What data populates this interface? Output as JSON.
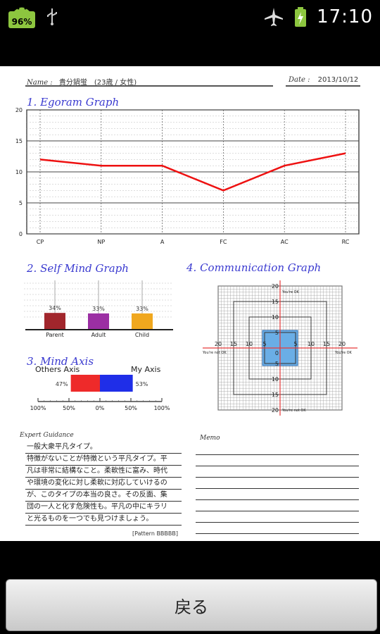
{
  "status_bar": {
    "battery_badge": "96%",
    "time": "17:10"
  },
  "header": {
    "name_label": "Name :",
    "name_value": "貴分鍋蛍　(23歳 / 女性)",
    "date_label": "Date :",
    "date_value": "2013/10/12"
  },
  "sections": {
    "egogram": "1. Egoram Graph",
    "self_mind": "2. Self Mind Graph",
    "communication": "4. Communication Graph",
    "mind_axis": "3. Mind Axis"
  },
  "chart_data": [
    {
      "type": "line",
      "categories": [
        "CP",
        "NP",
        "A",
        "FC",
        "AC",
        "RC"
      ],
      "values": [
        12,
        11,
        11,
        7,
        11,
        13
      ],
      "ylim": [
        0,
        20
      ],
      "yticks": [
        "0",
        "5",
        "10",
        "15",
        "20"
      ],
      "line_color": "#ee1111",
      "grid": true
    },
    {
      "type": "bar",
      "categories": [
        "Parent",
        "Adult",
        "Child"
      ],
      "values": [
        34,
        33,
        33
      ],
      "value_labels": [
        "34%",
        "33%",
        "33%"
      ],
      "colors": [
        "#a1262c",
        "#9b2fa3",
        "#f0a71e"
      ]
    },
    {
      "type": "bar",
      "left_label": "Others Axis",
      "right_label": "My Axis",
      "left_value": 47,
      "right_value": 53,
      "left_value_label": "47%",
      "right_value_label": "53%",
      "left_color": "#ee2a2a",
      "right_color": "#1f2ee8",
      "tick_labels": [
        "100%",
        "50%",
        "0%",
        "50%",
        "100%"
      ]
    },
    {
      "type": "scatter",
      "axis_labels_top": "20",
      "ticks": [
        "20",
        "15",
        "10",
        "5"
      ],
      "center_label": "0",
      "corner_labels": {
        "top": "You're OK",
        "left": "You're not OK",
        "right": "You're OK",
        "bottom": "You're not OK"
      },
      "box_x": [
        -5,
        5
      ],
      "box_y": [
        -5,
        5
      ],
      "box_color": "#6aaee6"
    }
  ],
  "advice": {
    "label": "Expert Guidance",
    "lines": [
      "一般大衆平凡タイプ。",
      "特徴がないことが特徴という平凡タイプ。平",
      "凡は非常に結構なこと。柔軟性に富み、時代",
      "や環境の変化に対し柔軟に対応していけるの",
      "が、このタイプの本当の良さ。その反面、集",
      "団の一人と化す危険性も。平凡の中にキラリ",
      "と光るものを一つでも見つけましょう。"
    ],
    "pattern": "[Pattern BBBBB]"
  },
  "memo": {
    "label": "Memo"
  },
  "back_button": "戻る"
}
